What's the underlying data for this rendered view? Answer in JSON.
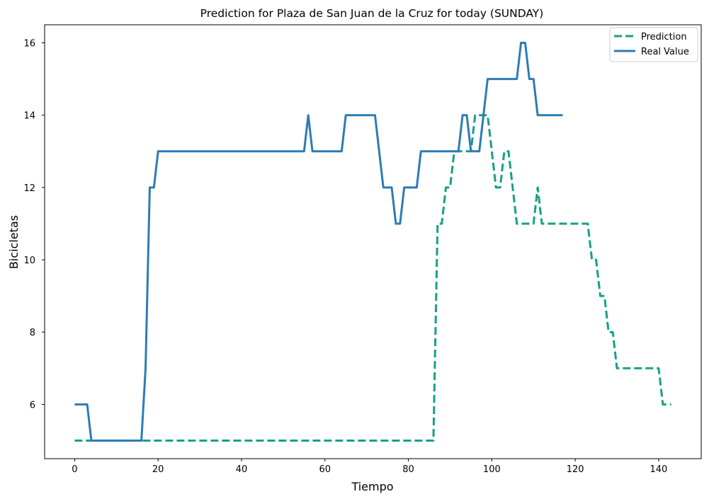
{
  "chart_data": {
    "type": "line",
    "title": "Prediction for Plaza de San Juan de la Cruz for today (SUNDAY)",
    "xlabel": "Tiempo",
    "ylabel": "Bicicletas",
    "xlim": [
      -7.2,
      150.2
    ],
    "ylim": [
      4.5,
      16.5
    ],
    "xticks": [
      0,
      20,
      40,
      60,
      80,
      100,
      120,
      140
    ],
    "yticks": [
      6,
      8,
      10,
      12,
      14,
      16
    ],
    "grid": false,
    "legend_position": "top-right",
    "series": [
      {
        "name": "Prediction",
        "color": "#16a085",
        "dash": "dashed",
        "points": [
          [
            0,
            5
          ],
          [
            86,
            5
          ],
          [
            87,
            11
          ],
          [
            88,
            11
          ],
          [
            89,
            12
          ],
          [
            90,
            12
          ],
          [
            91,
            13
          ],
          [
            92,
            13
          ],
          [
            93,
            13
          ],
          [
            94,
            13
          ],
          [
            95,
            13
          ],
          [
            96,
            14
          ],
          [
            97,
            14
          ],
          [
            98,
            14
          ],
          [
            99,
            14
          ],
          [
            100,
            13
          ],
          [
            101,
            12
          ],
          [
            102,
            12
          ],
          [
            103,
            13
          ],
          [
            104,
            13
          ],
          [
            105,
            12
          ],
          [
            106,
            11
          ],
          [
            107,
            11
          ],
          [
            108,
            11
          ],
          [
            109,
            11
          ],
          [
            110,
            11
          ],
          [
            111,
            12
          ],
          [
            112,
            11
          ],
          [
            113,
            11
          ],
          [
            114,
            11
          ],
          [
            115,
            11
          ],
          [
            116,
            11
          ],
          [
            117,
            11
          ],
          [
            118,
            11
          ],
          [
            119,
            11
          ],
          [
            120,
            11
          ],
          [
            121,
            11
          ],
          [
            122,
            11
          ],
          [
            123,
            11
          ],
          [
            124,
            10
          ],
          [
            125,
            10
          ],
          [
            126,
            9
          ],
          [
            127,
            9
          ],
          [
            128,
            8
          ],
          [
            129,
            8
          ],
          [
            130,
            7
          ],
          [
            140,
            7
          ],
          [
            141,
            6
          ],
          [
            143,
            6
          ]
        ]
      },
      {
        "name": "Real Value",
        "color": "#2c7bb6",
        "dash": "solid",
        "points": [
          [
            0,
            6
          ],
          [
            3,
            6
          ],
          [
            4,
            5
          ],
          [
            8,
            5
          ],
          [
            16,
            5
          ],
          [
            17,
            7
          ],
          [
            18,
            12
          ],
          [
            19,
            12
          ],
          [
            20,
            13
          ],
          [
            55,
            13
          ],
          [
            56,
            14
          ],
          [
            57,
            13
          ],
          [
            64,
            13
          ],
          [
            65,
            14
          ],
          [
            72,
            14
          ],
          [
            74,
            12
          ],
          [
            76,
            12
          ],
          [
            77,
            11
          ],
          [
            78,
            11
          ],
          [
            79,
            12
          ],
          [
            82,
            12
          ],
          [
            83,
            13
          ],
          [
            92,
            13
          ],
          [
            93,
            14
          ],
          [
            94,
            14
          ],
          [
            95,
            13
          ],
          [
            97,
            13
          ],
          [
            98,
            14
          ],
          [
            99,
            15
          ],
          [
            106,
            15
          ],
          [
            107,
            16
          ],
          [
            108,
            16
          ],
          [
            109,
            15
          ],
          [
            110,
            15
          ],
          [
            111,
            14
          ],
          [
            117,
            14
          ]
        ]
      }
    ]
  }
}
